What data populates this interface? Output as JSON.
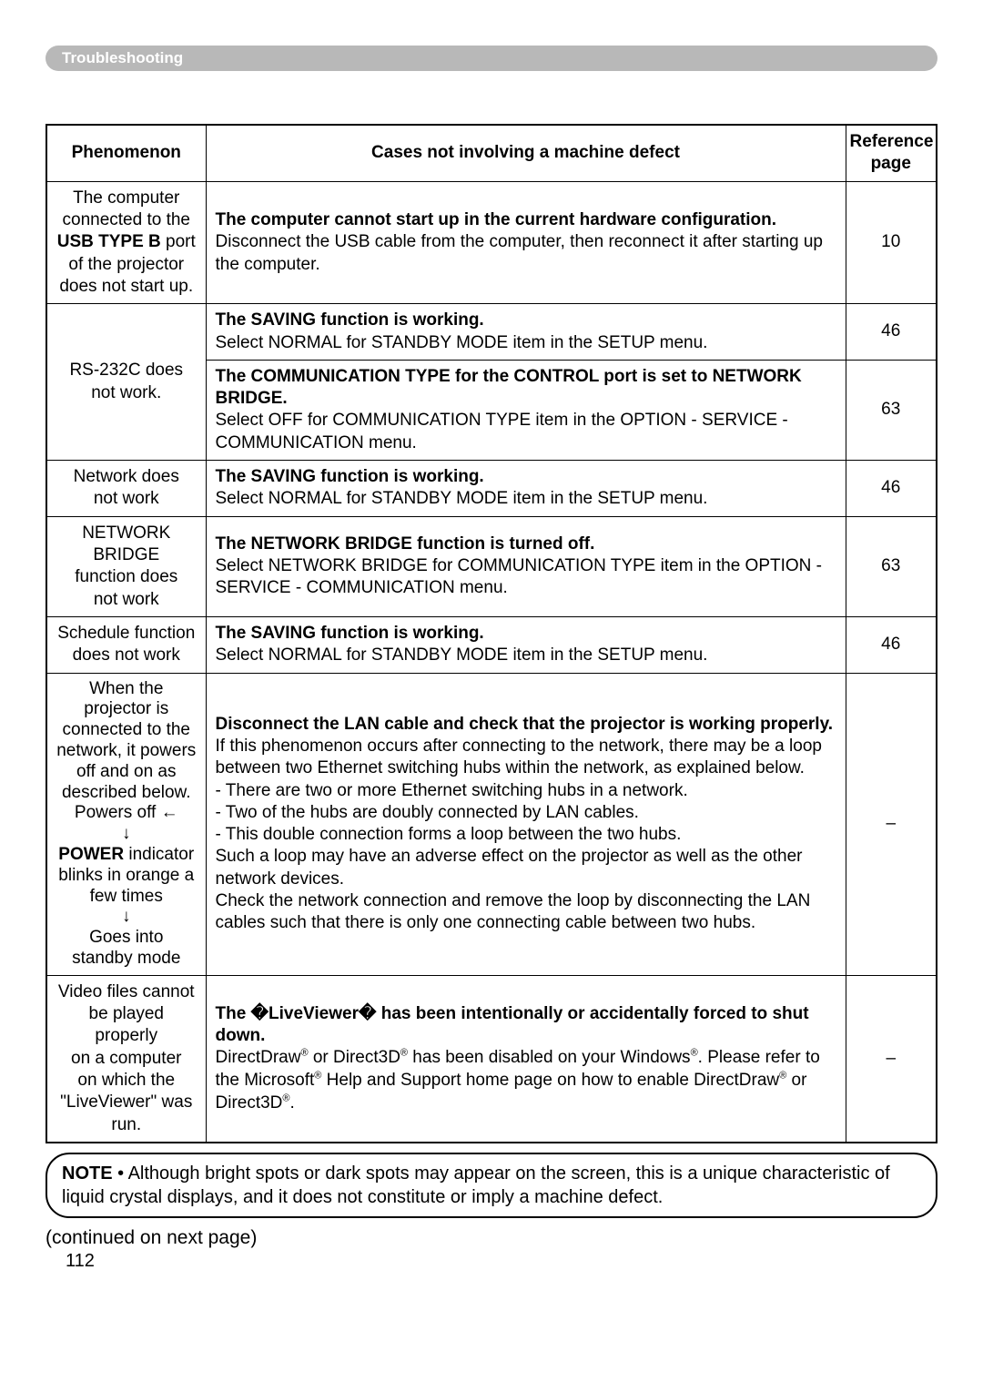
{
  "header": "Troubleshooting",
  "subtitle_placeholder": "           ",
  "table": {
    "headers": {
      "ph": "Phenomenon",
      "case": "Cases not involving a machine defect",
      "ref": "Reference page"
    },
    "rows": [
      {
        "ph_lines": [
          "The computer",
          "connected to the"
        ],
        "ph_strong": "USB TYPE B",
        "ph_after_strong": " port",
        "ph_tail": [
          "of the projector",
          "does not start up."
        ],
        "case_title": "The computer cannot start up in the current hardware configuration.",
        "case_body": "Disconnect the USB cable from the computer, then reconnect it after starting up the computer.",
        "ref": "10"
      },
      {
        "ph_rowspan": 2,
        "ph_lines": [
          "RS-232C does",
          "not work."
        ],
        "case_title": "The SAVING function is working.",
        "case_body": "Select NORMAL for STANDBY MODE item in the SETUP menu.",
        "ref": "46"
      },
      {
        "case_title": "The COMMUNICATION TYPE for the CONTROL port is set to NETWORK BRIDGE.",
        "case_body": "Select OFF for COMMUNICATION TYPE item in the OPTION - SERVICE - COMMUNICATION menu.",
        "ref": "63"
      },
      {
        "ph_lines": [
          "Network does",
          "not work"
        ],
        "case_title": "The SAVING function is working.",
        "case_body": "Select NORMAL for STANDBY MODE item in the SETUP menu.",
        "ref": "46"
      },
      {
        "ph_lines": [
          "NETWORK",
          "BRIDGE",
          "function does",
          "not work"
        ],
        "case_title": "The NETWORK BRIDGE function is turned off.",
        "case_body": "Select NETWORK BRIDGE for COMMUNICATION TYPE item in the OPTION - SERVICE - COMMUNICATION menu.",
        "ref": "63"
      },
      {
        "ph_lines": [
          "Schedule function",
          "does not work"
        ],
        "case_title": "The SAVING function is working.",
        "case_body": "Select NORMAL for STANDBY MODE item in the SETUP menu.",
        "ref": "46"
      },
      {
        "ph_flow": {
          "pre": [
            "When the",
            "projector is",
            "connected to the",
            "network, it powers",
            "off and on as",
            "described below."
          ],
          "step1": "Powers off ←",
          "arrow1": "↓",
          "step2_strong": "POWER",
          "step2_rest": " indicator",
          "step2b": [
            "blinks in orange a",
            "few times"
          ],
          "arrow2": "↓",
          "tail": [
            "Goes into",
            "standby mode"
          ]
        },
        "case_title": "Disconnect the LAN cable and check that the projector is working properly.",
        "case_body": "If this phenomenon occurs after connecting to the network, there may be a loop between two Ethernet switching hubs within the network, as explained below.\n- There are two or more Ethernet switching hubs in a network.\n- Two of the hubs are doubly connected by LAN cables.\n- This double connection forms a loop between the two hubs.\nSuch a loop may have an adverse effect on the projector as well as the other network devices.\nCheck the network connection and remove the loop by disconnecting the LAN cables such that there is only one connecting cable between two hubs.",
        "ref": "–"
      },
      {
        "ph_lines": [
          "Video files cannot",
          "be played properly",
          "on a computer",
          "on which the",
          "\"LiveViewer\" was",
          "run."
        ],
        "case_title": "The �LiveViewer� has been intentionally or accidentally forced to shut down.",
        "case_body_html": "DirectDraw<sup>®</sup> or Direct3D<sup>®</sup> has been disabled on your Windows<sup>®</sup>. Please refer to the Microsoft<sup>®</sup> Help and Support home page on how to enable DirectDraw<sup>®</sup> or Direct3D<sup>®</sup>.",
        "ref": "–"
      }
    ]
  },
  "note": {
    "label": "NOTE",
    "text": "• Although bright spots or dark spots may appear on the screen, this is a unique characteristic of liquid crystal displays, and it does not constitute or imply a machine defect."
  },
  "continued": "(continued on next page)",
  "page_number": "112"
}
